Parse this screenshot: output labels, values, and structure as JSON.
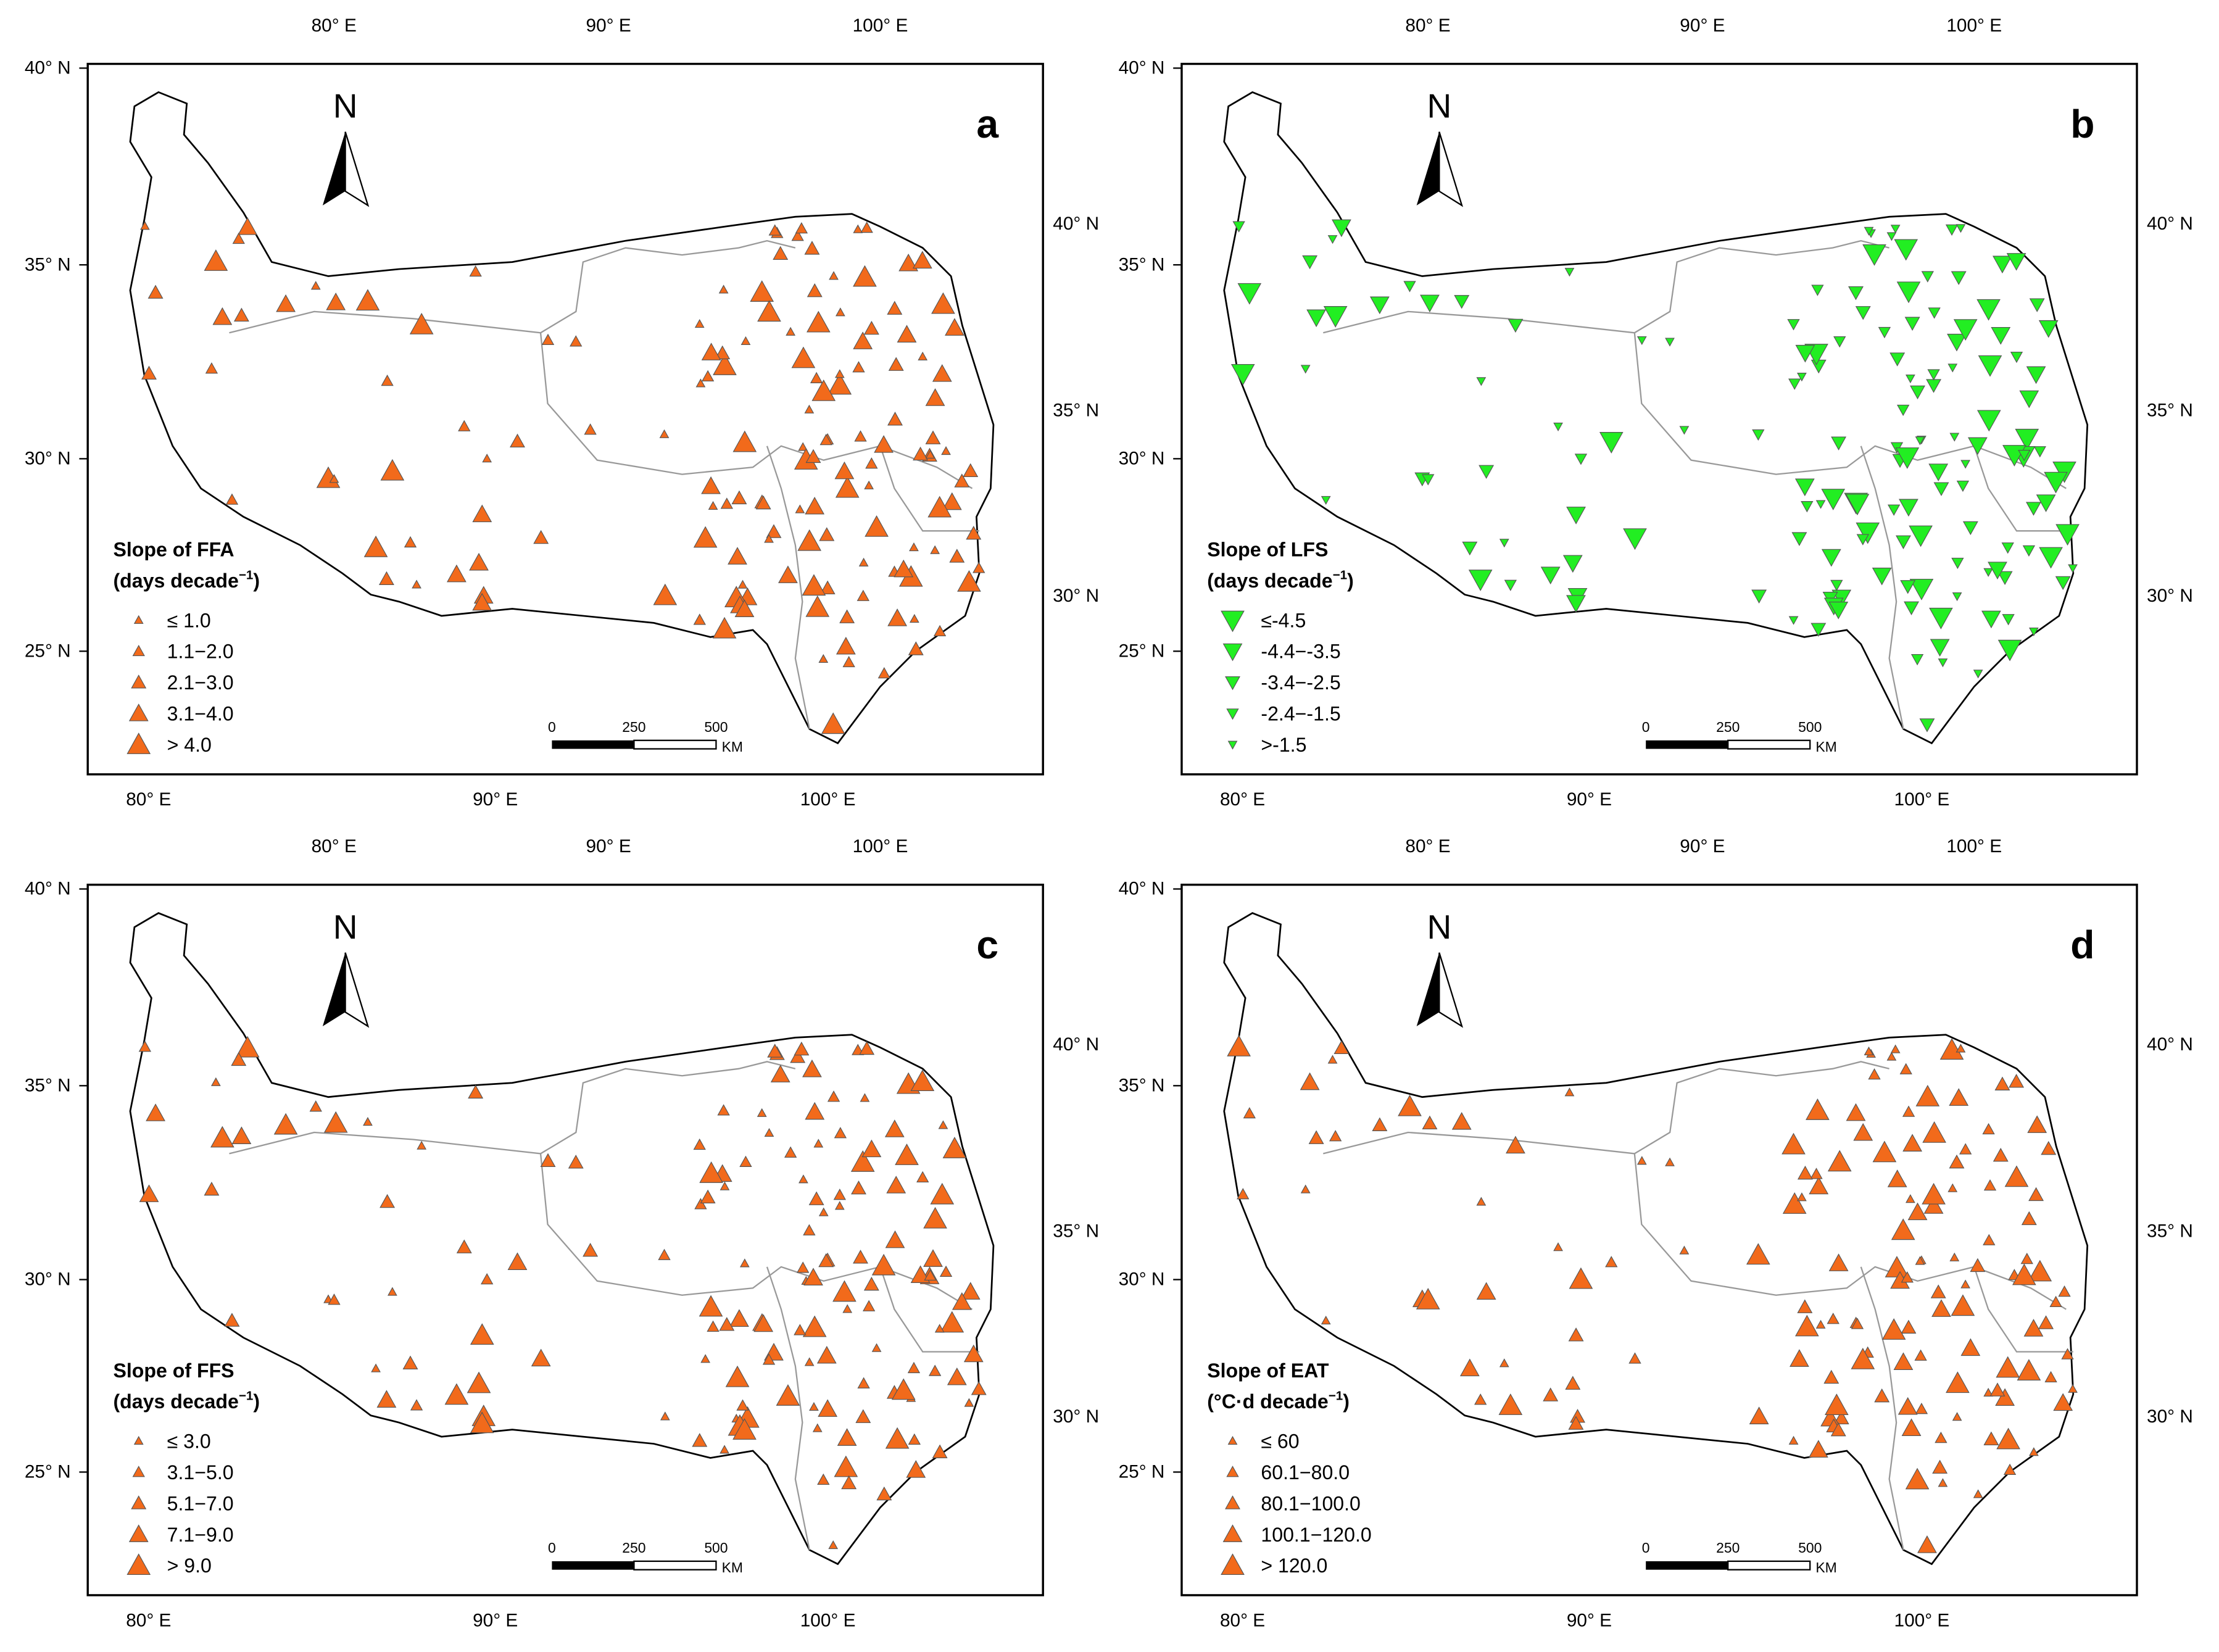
{
  "graticule": {
    "top": [
      "80° E",
      "90° E",
      "100° E"
    ],
    "bottom": [
      "80° E",
      "90° E",
      "100° E"
    ],
    "left": [
      "40° N",
      "35° N",
      "30° N",
      "25° N"
    ],
    "right": [
      "40° N",
      "35° N",
      "30° N"
    ]
  },
  "north_label": "N",
  "scale_bar": {
    "ticks": [
      "0",
      "250",
      "500"
    ],
    "unit": "KM"
  },
  "panels": [
    {
      "letter": "a",
      "marker": {
        "color": "#f26a1b",
        "direction": "up"
      },
      "legend": {
        "title": "Slope of FFA",
        "unit": "(days decade",
        "unit_sup": "−1",
        "unit_close": ")",
        "classes": [
          "≤ 1.0",
          "1.1−2.0",
          "2.1−3.0",
          "3.1−4.0",
          "> 4.0"
        ]
      }
    },
    {
      "letter": "b",
      "marker": {
        "color": "#22ee22",
        "direction": "down"
      },
      "legend": {
        "title": "Slope of LFS",
        "unit": "(days decade",
        "unit_sup": "−1",
        "unit_close": ")",
        "classes": [
          "≤-4.5",
          "-4.4−-3.5",
          "-3.4−-2.5",
          "-2.4−-1.5",
          ">-1.5"
        ]
      }
    },
    {
      "letter": "c",
      "marker": {
        "color": "#f26a1b",
        "direction": "up"
      },
      "legend": {
        "title": "Slope of FFS",
        "unit": "(days decade",
        "unit_sup": "−1",
        "unit_close": ")",
        "classes": [
          "≤ 3.0",
          "3.1−5.0",
          "5.1−7.0",
          "7.1−9.0",
          "> 9.0"
        ]
      }
    },
    {
      "letter": "d",
      "marker": {
        "color": "#f26a1b",
        "direction": "up"
      },
      "legend": {
        "title": "Slope of EAT",
        "unit": "(°C·d decade",
        "unit_sup": "−1",
        "unit_close": ")",
        "classes": [
          "≤ 60",
          "60.1−80.0",
          "80.1−100.0",
          "100.1−120.0",
          "> 120.0"
        ]
      }
    }
  ]
}
